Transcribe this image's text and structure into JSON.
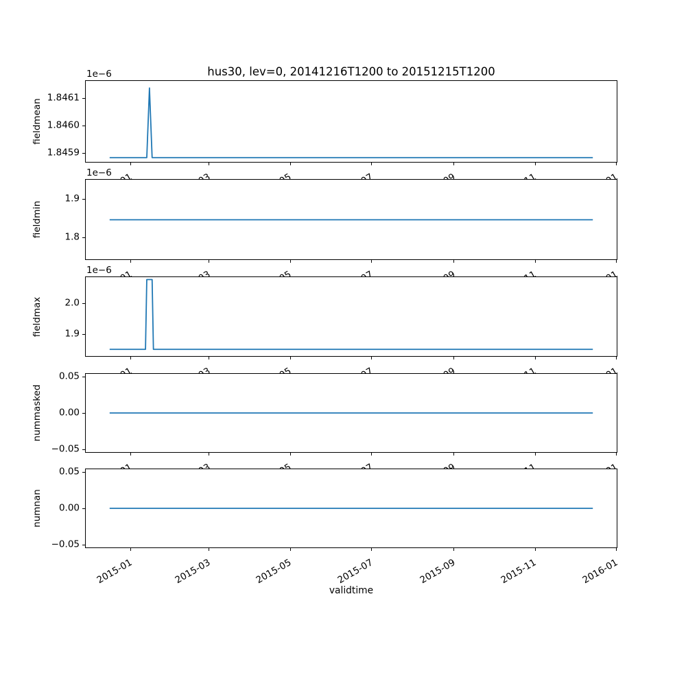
{
  "figure": {
    "background": "#ffffff"
  },
  "chart_data": {
    "type": "line",
    "title": "hus30, lev=0, 20141216T1200 to 20151215T1200",
    "xlabel": "validtime",
    "line_color": "#1f77b4",
    "grid": false,
    "legend": null,
    "x_axis": {
      "unit": "days since first sample (2014-12-16T12:00)",
      "lim_days": [
        -18,
        382
      ],
      "tick_days": [
        16,
        75,
        136,
        197,
        259,
        320,
        381
      ],
      "tick_labels": [
        "2015-01",
        "2015-03",
        "2015-05",
        "2015-07",
        "2015-09",
        "2015-11",
        "2016-01"
      ]
    },
    "subplots": [
      {
        "ylabel": "fieldmean",
        "offset_text": "1e−6",
        "ylim": [
          1.845865,
          1.846165
        ],
        "yticks": [
          {
            "value": 1.8459,
            "label": "1.8459"
          },
          {
            "value": 1.846,
            "label": "1.8460"
          },
          {
            "value": 1.8461,
            "label": "1.8461"
          }
        ],
        "points": [
          [
            0,
            1.845881
          ],
          [
            28,
            1.845881
          ],
          [
            30,
            1.846139
          ],
          [
            32,
            1.845881
          ],
          [
            364,
            1.845881
          ]
        ]
      },
      {
        "ylabel": "fieldmin",
        "offset_text": "1e−6",
        "ylim": [
          1.741,
          1.952
        ],
        "yticks": [
          {
            "value": 1.8,
            "label": "1.8"
          },
          {
            "value": 1.9,
            "label": "1.9"
          }
        ],
        "points": [
          [
            0,
            1.8457
          ],
          [
            364,
            1.8457
          ]
        ]
      },
      {
        "ylabel": "fieldmax",
        "offset_text": "1e−6",
        "ylim": [
          1.826,
          2.086
        ],
        "yticks": [
          {
            "value": 1.9,
            "label": "1.9"
          },
          {
            "value": 2.0,
            "label": "2.0"
          }
        ],
        "points": [
          [
            0,
            1.848
          ],
          [
            27,
            1.848
          ],
          [
            28,
            2.078
          ],
          [
            32,
            2.078
          ],
          [
            33,
            1.848
          ],
          [
            364,
            1.848
          ]
        ]
      },
      {
        "ylabel": "nummasked",
        "offset_text": null,
        "ylim": [
          -0.055,
          0.055
        ],
        "yticks": [
          {
            "value": -0.05,
            "label": "−0.05"
          },
          {
            "value": 0.0,
            "label": "0.00"
          },
          {
            "value": 0.05,
            "label": "0.05"
          }
        ],
        "points": [
          [
            0,
            0
          ],
          [
            364,
            0
          ]
        ]
      },
      {
        "ylabel": "numnan",
        "offset_text": null,
        "ylim": [
          -0.055,
          0.055
        ],
        "yticks": [
          {
            "value": -0.05,
            "label": "−0.05"
          },
          {
            "value": 0.0,
            "label": "0.00"
          },
          {
            "value": 0.05,
            "label": "0.05"
          }
        ],
        "points": [
          [
            0,
            0
          ],
          [
            364,
            0
          ]
        ]
      }
    ]
  }
}
